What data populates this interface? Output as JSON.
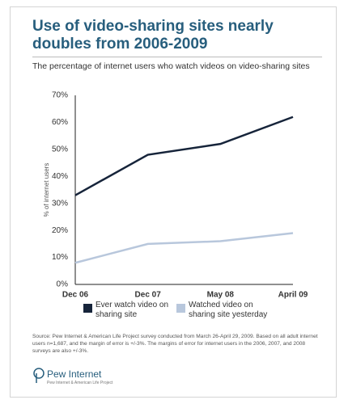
{
  "chart_data": {
    "type": "line",
    "title": "Use of video-sharing sites nearly doubles from 2006-2009",
    "subtitle": "The percentage of internet users who watch videos on video-sharing sites",
    "y_label": "% of internet users",
    "categories": [
      "Dec 06",
      "Dec 07",
      "May 08",
      "April 09"
    ],
    "series": [
      {
        "name": "Ever watch video on sharing site",
        "color": "#16243a",
        "values": [
          33,
          48,
          52,
          62
        ]
      },
      {
        "name": "Watched video on sharing site yesterday",
        "color": "#b8c7dc",
        "values": [
          8,
          15,
          16,
          19
        ]
      }
    ],
    "ylim": [
      0,
      70
    ],
    "yticks": [
      {
        "value": 0,
        "label": "0%"
      },
      {
        "value": 10,
        "label": "10%"
      },
      {
        "value": 20,
        "label": "20%"
      },
      {
        "value": 30,
        "label": "30%"
      },
      {
        "value": 40,
        "label": "40%"
      },
      {
        "value": 50,
        "label": "50%"
      },
      {
        "value": 60,
        "label": "60%"
      },
      {
        "value": 70,
        "label": "70%"
      }
    ],
    "source": "Source: Pew Internet & American Life Project survey conducted from March 26-April 29, 2009. Based on all adult internet users n=1,687, and the margin of error is +/-3%. The margins of error for internet users in the 2006, 2007, and 2008 surveys are also +/-3%.",
    "logo": {
      "name": "Pew Internet",
      "tagline": "Pew Internet & American Life Project"
    }
  }
}
